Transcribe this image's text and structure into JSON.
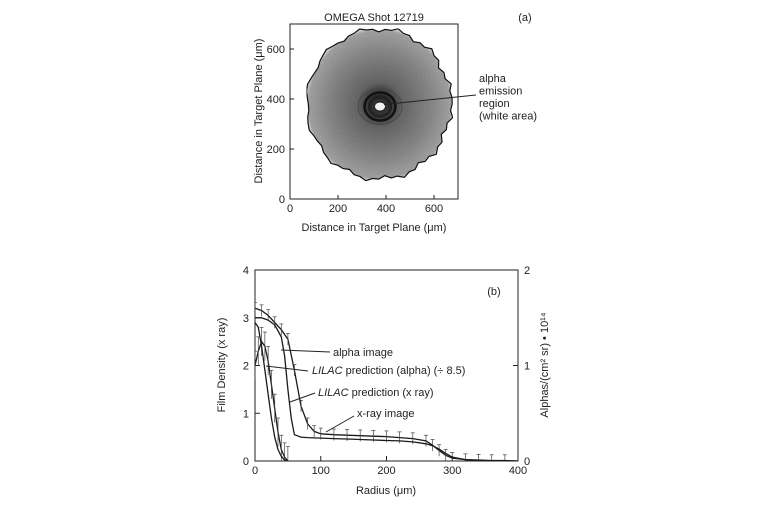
{
  "chart_data": [
    {
      "panel": "(a)",
      "type": "heatmap",
      "title": "OMEGA Shot 12719",
      "xlabel": "Distance in Target Plane (μm)",
      "ylabel": "Distance in Target Plane (μm)",
      "xlim": [
        0,
        700
      ],
      "ylim": [
        0,
        700
      ],
      "xticks": [
        "0",
        "200",
        "400",
        "600"
      ],
      "yticks": [
        "0",
        "200",
        "400",
        "600"
      ],
      "image_center": [
        370,
        380
      ],
      "image_radius": 300,
      "bright_center": [
        375,
        370
      ],
      "annotation": {
        "lines": [
          "alpha",
          "emission",
          "region",
          "(white area)"
        ],
        "points_to": [
          375,
          370
        ]
      }
    },
    {
      "panel": "(b)",
      "type": "line",
      "xlabel": "Radius (μm)",
      "ylabel": "Film Density (x ray)",
      "ylabel_right": "Alphas/(cm² sr) • 10¹⁴",
      "xlim": [
        0,
        400
      ],
      "ylim": [
        0,
        4
      ],
      "ylim_right": [
        0,
        2
      ],
      "xticks": [
        "0",
        "100",
        "200",
        "300",
        "400"
      ],
      "yticks": [
        "0",
        "1",
        "2",
        "3",
        "4"
      ],
      "yticks_right": [
        "0",
        "1",
        "2"
      ],
      "series": [
        {
          "name": "x-ray image",
          "x": [
            0,
            10,
            20,
            30,
            40,
            50,
            60,
            70,
            80,
            90,
            100,
            120,
            140,
            160,
            180,
            200,
            220,
            240,
            260,
            270,
            280,
            290,
            300,
            320,
            340,
            360,
            380,
            400
          ],
          "y": [
            3.2,
            3.15,
            3.05,
            2.9,
            2.75,
            2.55,
            1.9,
            1.15,
            0.78,
            0.62,
            0.57,
            0.55,
            0.54,
            0.53,
            0.52,
            0.51,
            0.49,
            0.47,
            0.42,
            0.33,
            0.22,
            0.12,
            0.06,
            0.03,
            0.02,
            0.01,
            0.01,
            0.0
          ],
          "error": 0.12
        },
        {
          "name": "LILAC prediction (x ray)",
          "x": [
            0,
            10,
            20,
            30,
            40,
            45,
            50,
            55,
            60,
            70,
            80,
            100,
            120,
            140,
            160,
            180,
            200,
            220,
            240,
            260,
            270,
            280,
            290,
            300,
            320,
            340,
            400
          ],
          "y": [
            3.0,
            3.0,
            2.95,
            2.85,
            2.6,
            2.2,
            1.5,
            0.9,
            0.55,
            0.5,
            0.49,
            0.48,
            0.47,
            0.46,
            0.45,
            0.44,
            0.43,
            0.42,
            0.4,
            0.36,
            0.32,
            0.25,
            0.16,
            0.08,
            0.03,
            0.01,
            0.0
          ]
        },
        {
          "name": "alpha image",
          "axis": "right",
          "x": [
            0,
            5,
            10,
            15,
            20,
            25,
            30,
            35,
            40,
            45,
            50
          ],
          "y": [
            1.0,
            1.15,
            1.25,
            1.2,
            1.05,
            0.8,
            0.55,
            0.3,
            0.12,
            0.04,
            0.0
          ],
          "error": 0.15
        },
        {
          "name": "LILAC prediction (alpha) (÷ 8.5)",
          "axis": "right",
          "x": [
            0,
            5,
            10,
            15,
            20,
            25,
            30,
            35,
            40,
            45,
            50
          ],
          "y": [
            1.45,
            1.4,
            1.2,
            0.95,
            0.7,
            0.45,
            0.25,
            0.12,
            0.05,
            0.01,
            0.0
          ]
        }
      ],
      "annotations": [
        {
          "text": "alpha image",
          "italic_word": ""
        },
        {
          "text": " prediction (alpha) (÷ 8.5)",
          "italic_word": "LILAC"
        },
        {
          "text": " prediction (x ray)",
          "italic_word": "LILAC"
        },
        {
          "text": "x-ray image",
          "italic_word": ""
        }
      ],
      "grid": false
    }
  ]
}
